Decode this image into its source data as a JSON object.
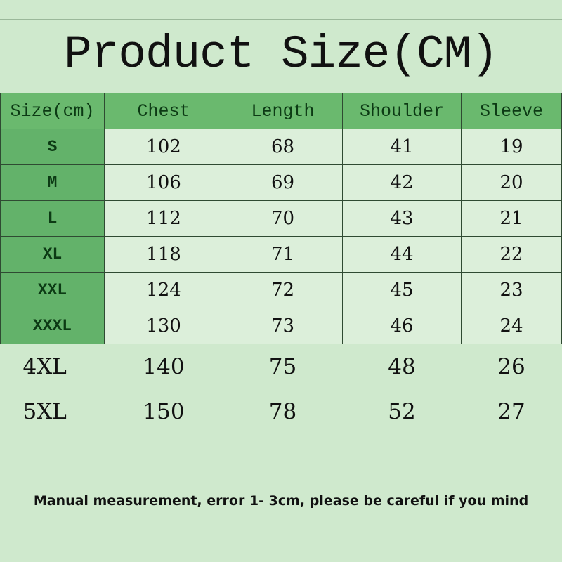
{
  "title": "Product Size(CM)",
  "headers": [
    "Size(cm)",
    "Chest",
    "Length",
    "Shoulder",
    "Sleeve"
  ],
  "rows": [
    [
      "S",
      "102",
      "68",
      "41",
      "19"
    ],
    [
      "M",
      "106",
      "69",
      "42",
      "20"
    ],
    [
      "L",
      "112",
      "70",
      "43",
      "21"
    ],
    [
      "XL",
      "118",
      "71",
      "44",
      "22"
    ],
    [
      "XXL",
      "124",
      "72",
      "45",
      "23"
    ],
    [
      "XXXL",
      "130",
      "73",
      "46",
      "24"
    ]
  ],
  "extra_rows": [
    [
      "4XL",
      "140",
      "75",
      "48",
      "26"
    ],
    [
      "5XL",
      "150",
      "78",
      "52",
      "27"
    ]
  ],
  "note": "Manual measurement, error 1- 3cm, please be careful if you mind",
  "colors": {
    "header": "#6ab96e",
    "size_column": "#63b26a",
    "cell": "#dcefda",
    "background": "#cfe9cd"
  }
}
